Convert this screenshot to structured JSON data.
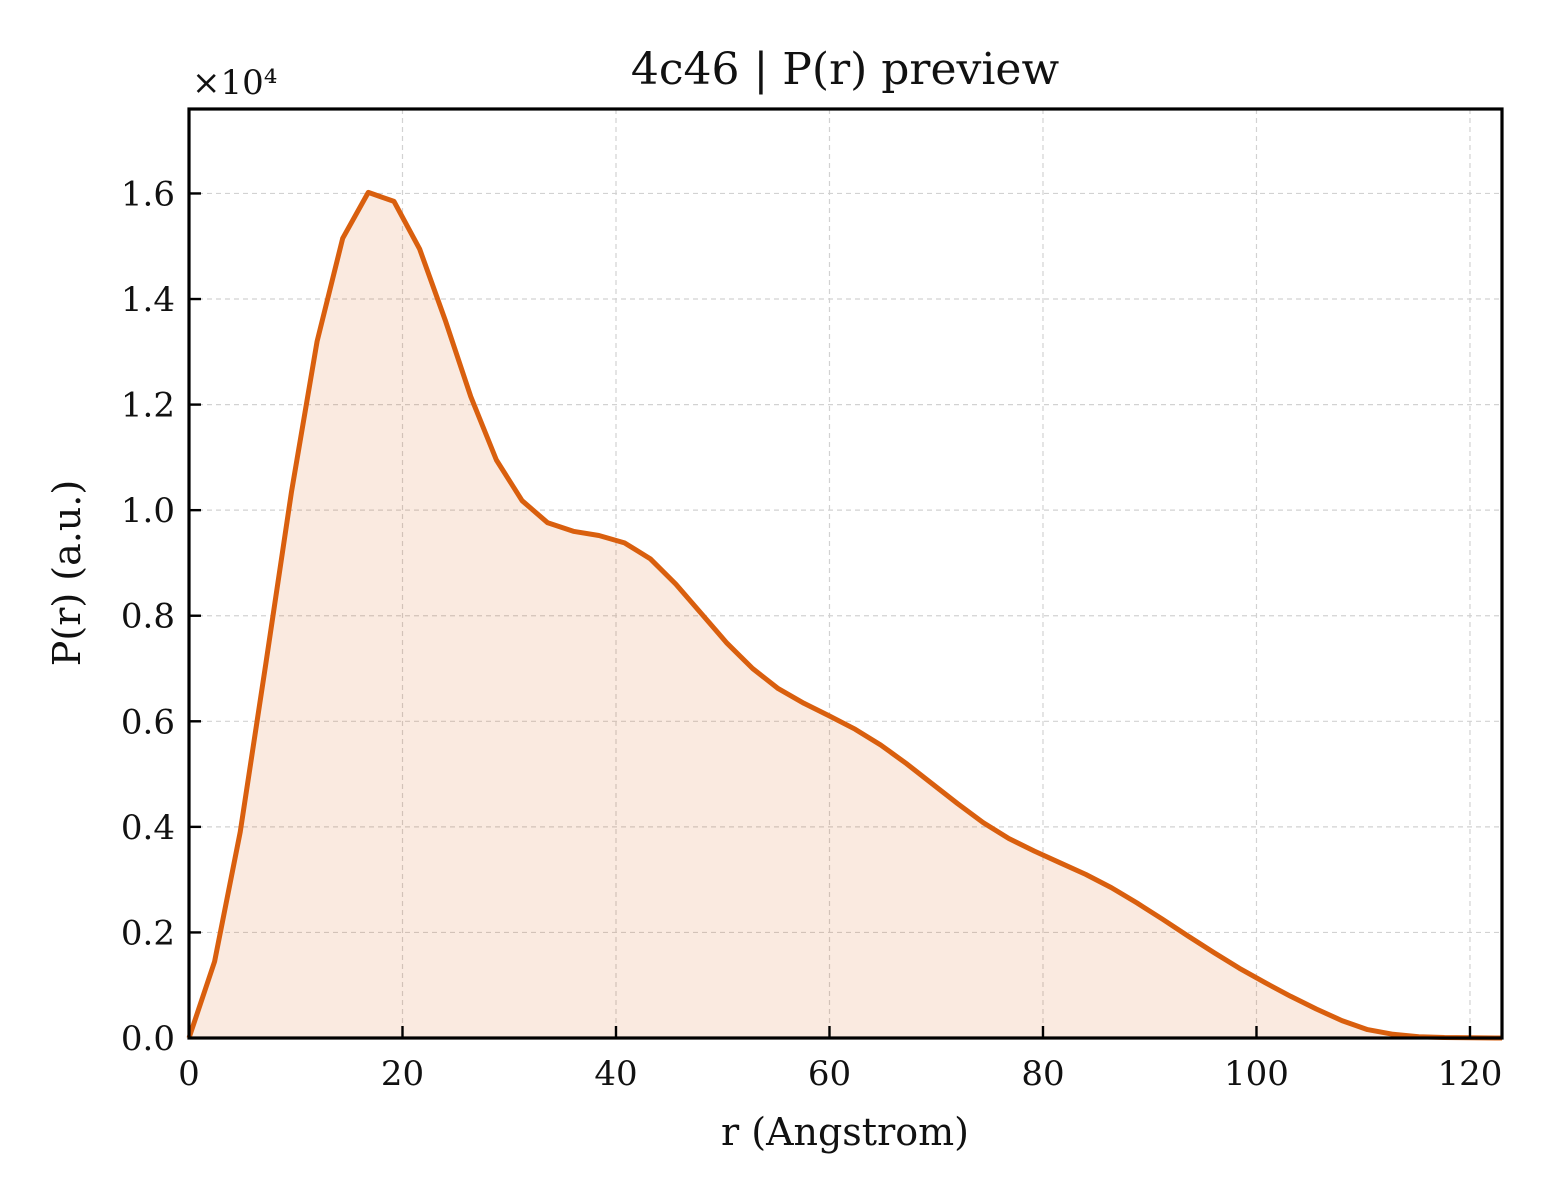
{
  "chart_data": {
    "type": "area",
    "title": "4c46 | P(r) preview",
    "xlabel": "r (Angstrom)",
    "ylabel": "P(r) (a.u.)",
    "y_offset_label": "×10⁴",
    "xlim": [
      0,
      123
    ],
    "ylim": [
      0,
      17600
    ],
    "xticks": [
      0,
      20,
      40,
      60,
      80,
      100,
      120
    ],
    "xtick_labels": [
      "0",
      "20",
      "40",
      "60",
      "80",
      "100",
      "120"
    ],
    "yticks": [
      0,
      2000,
      4000,
      6000,
      8000,
      10000,
      12000,
      14000,
      16000
    ],
    "ytick_labels": [
      "0.0",
      "0.2",
      "0.4",
      "0.6",
      "0.8",
      "1.0",
      "1.2",
      "1.4",
      "1.6"
    ],
    "grid": true,
    "colors": {
      "line": "#d95f0e",
      "fill": "#d95f0e",
      "fill_opacity": 0.13
    },
    "series": [
      {
        "x": [
          0,
          2.4,
          4.8,
          7.2,
          9.6,
          12.0,
          14.4,
          16.8,
          19.2,
          21.6,
          24.0,
          26.4,
          28.8,
          31.2,
          33.6,
          36.0,
          38.4,
          40.8,
          43.2,
          45.6,
          48.0,
          50.4,
          52.8,
          55.2,
          57.6,
          60.0,
          62.4,
          64.8,
          67.2,
          69.6,
          72.0,
          74.4,
          76.8,
          79.2,
          81.6,
          84.0,
          86.4,
          88.8,
          91.2,
          93.6,
          96.0,
          98.4,
          100.8,
          103.2,
          105.6,
          108.0,
          110.4,
          112.8,
          115.2,
          117.6,
          120.0,
          122.4,
          123.0
        ],
        "y": [
          0,
          1450,
          3900,
          7100,
          10350,
          13200,
          15150,
          16020,
          15850,
          14950,
          13600,
          12150,
          10950,
          10180,
          9760,
          9600,
          9520,
          9380,
          9080,
          8600,
          8040,
          7480,
          7000,
          6620,
          6340,
          6100,
          5850,
          5550,
          5200,
          4820,
          4440,
          4080,
          3780,
          3540,
          3320,
          3100,
          2850,
          2560,
          2250,
          1930,
          1620,
          1320,
          1050,
          790,
          550,
          330,
          160,
          70,
          25,
          10,
          5,
          0,
          0
        ]
      }
    ]
  }
}
